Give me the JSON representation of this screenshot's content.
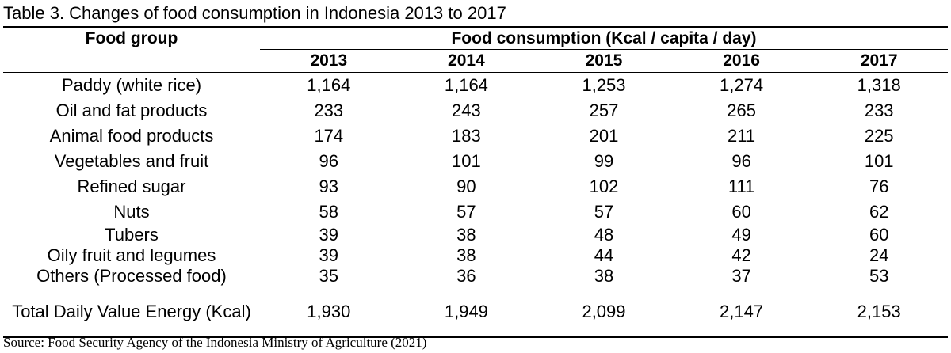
{
  "caption": "Table 3. Changes of food consumption in Indonesia 2013 to 2017",
  "header": {
    "group_label": "Food group",
    "span_label": "Food consumption (Kcal / capita / day)",
    "years": [
      "2013",
      "2014",
      "2015",
      "2016",
      "2017"
    ]
  },
  "rows": [
    {
      "name": "Paddy (white rice)",
      "values": [
        "1,164",
        "1,164",
        "1,253",
        "1,274",
        "1,318"
      ]
    },
    {
      "name": "Oil and fat products",
      "values": [
        "233",
        "243",
        "257",
        "265",
        "233"
      ]
    },
    {
      "name": "Animal food products",
      "values": [
        "174",
        "183",
        "201",
        "211",
        "225"
      ]
    },
    {
      "name": "Vegetables and fruit",
      "values": [
        "96",
        "101",
        "99",
        "96",
        "101"
      ]
    },
    {
      "name": "Refined sugar",
      "values": [
        "93",
        "90",
        "102",
        "111",
        "76"
      ]
    },
    {
      "name": "Nuts",
      "values": [
        "58",
        "57",
        "57",
        "60",
        "62"
      ]
    },
    {
      "name": "Tubers",
      "values": [
        "39",
        "38",
        "48",
        "49",
        "60"
      ]
    },
    {
      "name": "Oily fruit and legumes",
      "values": [
        "39",
        "38",
        "44",
        "42",
        "24"
      ]
    },
    {
      "name": "Others (Processed food)",
      "values": [
        "35",
        "36",
        "38",
        "37",
        "53"
      ]
    }
  ],
  "total": {
    "name": "Total Daily Value Energy (Kcal)",
    "values": [
      "1,930",
      "1,949",
      "2,099",
      "2,147",
      "2,153"
    ]
  },
  "source": "Source: Food Security Agency of the Indonesia Ministry of Agriculture (2021)"
}
